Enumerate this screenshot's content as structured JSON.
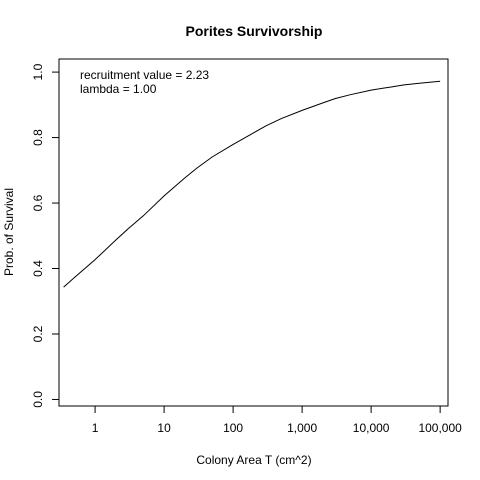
{
  "chart_data": {
    "type": "line",
    "title": "Porites Survivorship",
    "xlabel": "Colony Area T (cm^2)",
    "ylabel": "Prob. of Survival",
    "x_scale": "log10",
    "xlim": [
      0.3,
      130000
    ],
    "ylim": [
      -0.02,
      1.04
    ],
    "x_ticks": [
      1,
      10,
      100,
      1000,
      10000,
      100000
    ],
    "x_tick_labels": [
      "1",
      "10",
      "100",
      "1,000",
      "10,000",
      "100,000"
    ],
    "y_ticks": [
      0.0,
      0.2,
      0.4,
      0.6,
      0.8,
      1.0
    ],
    "y_tick_labels": [
      "0.0",
      "0.2",
      "0.4",
      "0.6",
      "0.8",
      "1.0"
    ],
    "grid": false,
    "annotations": [
      "recruitment value = 2.23",
      "lambda = 1.00"
    ],
    "series": [
      {
        "x": [
          0.35,
          0.5,
          1,
          2,
          3,
          5,
          10,
          20,
          30,
          50,
          100,
          200,
          300,
          500,
          1000,
          2000,
          3000,
          5000,
          10000,
          20000,
          30000,
          50000,
          100000
        ],
        "y": [
          0.343,
          0.372,
          0.427,
          0.487,
          0.521,
          0.561,
          0.622,
          0.677,
          0.707,
          0.741,
          0.779,
          0.815,
          0.836,
          0.858,
          0.883,
          0.906,
          0.919,
          0.931,
          0.945,
          0.955,
          0.961,
          0.966,
          0.972
        ],
        "color": "#000000"
      }
    ]
  }
}
